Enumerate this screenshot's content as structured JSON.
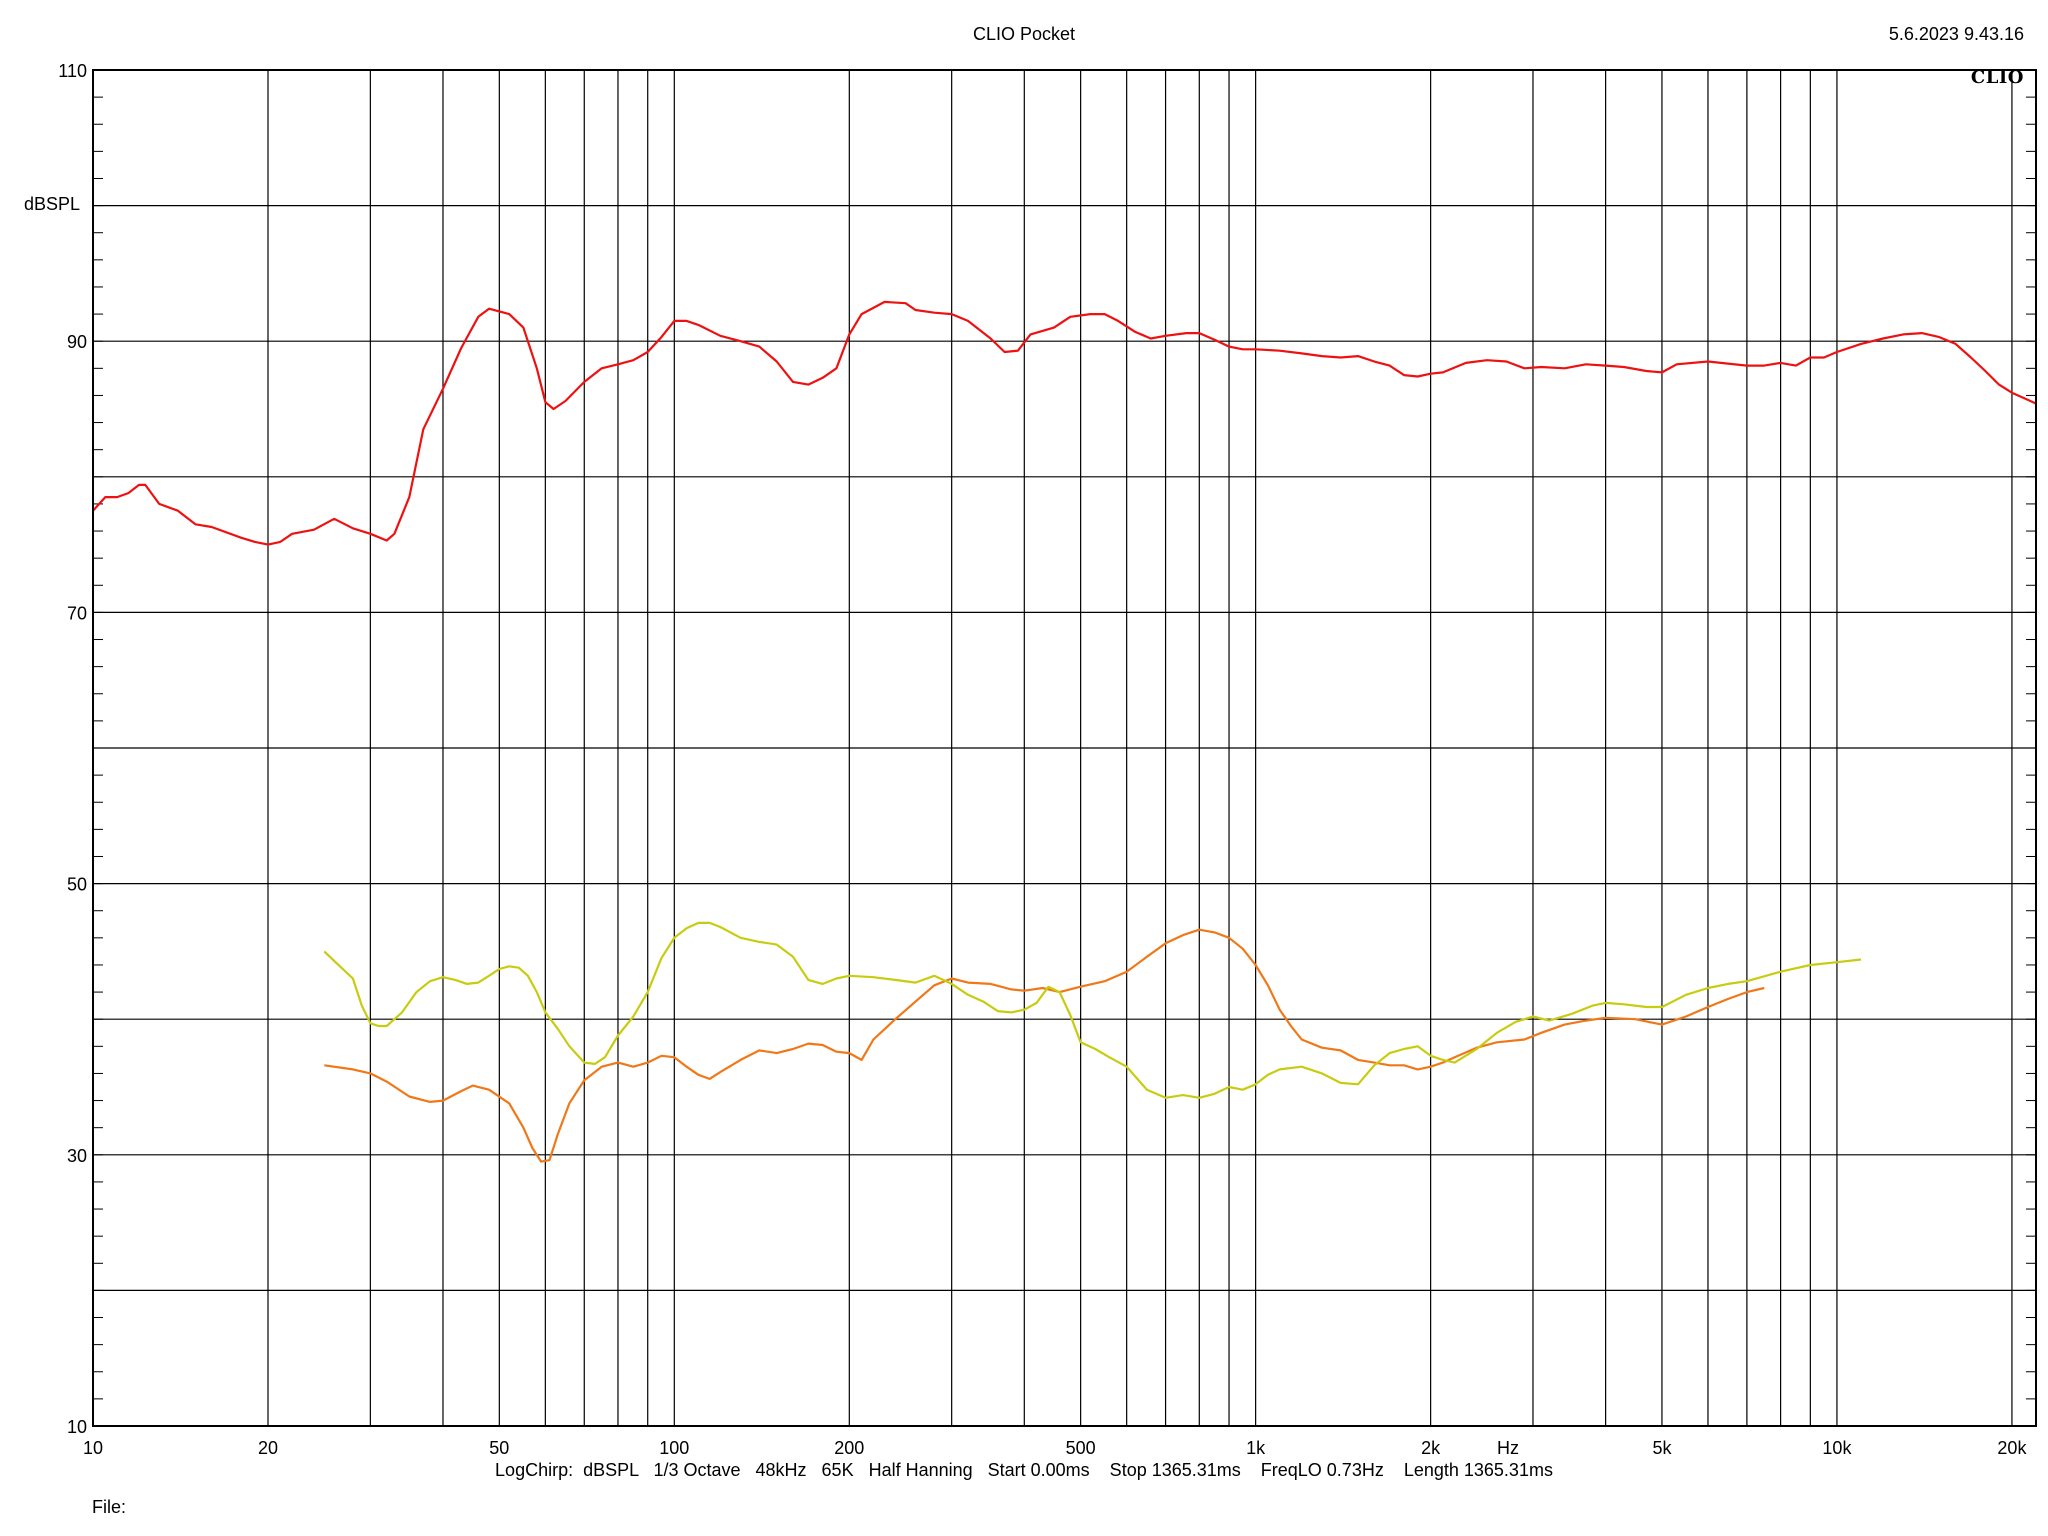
{
  "header": {
    "title": "CLIO Pocket",
    "timestamp": "5.6.2023 9.43.16",
    "logo": "CLIO"
  },
  "footer": {
    "params": "LogChirp:  dBSPL   1/3 Octave   48kHz   65K   Half Hanning   Start 0.00ms    Stop 1365.31ms    FreqLO 0.73Hz    Length 1365.31ms",
    "file_label": "File:"
  },
  "colors": {
    "red": "#ee1111",
    "orange": "#f07818",
    "yellow": "#c8cc10",
    "grid": "#000000"
  },
  "chart_data": {
    "type": "line",
    "title": "CLIO Pocket",
    "xlabel": "Hz",
    "ylabel": "dBSPL",
    "xscale": "log",
    "xlim": [
      10,
      22000
    ],
    "ylim": [
      10,
      110
    ],
    "grid": true,
    "xticks": [
      10,
      20,
      50,
      100,
      200,
      500,
      1000,
      2000,
      5000,
      10000,
      20000
    ],
    "xtick_labels": [
      "10",
      "20",
      "50",
      "100",
      "200",
      "500",
      "1k",
      "2k",
      "5k",
      "10k",
      "20k"
    ],
    "yticks": [
      10,
      30,
      50,
      70,
      90,
      110
    ],
    "ytick_labels": [
      "10",
      "30",
      "50",
      "70",
      "90",
      "110"
    ],
    "series": [
      {
        "color": "#ee1111",
        "points": [
          [
            10,
            77.5
          ],
          [
            10.5,
            78.5
          ],
          [
            11,
            78.5
          ],
          [
            11.5,
            78.8
          ],
          [
            12,
            79.4
          ],
          [
            12.3,
            79.4
          ],
          [
            13,
            78.0
          ],
          [
            14,
            77.5
          ],
          [
            15,
            76.5
          ],
          [
            16,
            76.3
          ],
          [
            18,
            75.5
          ],
          [
            19,
            75.2
          ],
          [
            20,
            75.0
          ],
          [
            21,
            75.2
          ],
          [
            22,
            75.8
          ],
          [
            24,
            76.1
          ],
          [
            26,
            76.9
          ],
          [
            28,
            76.2
          ],
          [
            30,
            75.8
          ],
          [
            32,
            75.3
          ],
          [
            33,
            75.8
          ],
          [
            35,
            78.5
          ],
          [
            37,
            83.5
          ],
          [
            40,
            86.5
          ],
          [
            43,
            89.5
          ],
          [
            46,
            91.8
          ],
          [
            48,
            92.4
          ],
          [
            52,
            92.0
          ],
          [
            55,
            91.0
          ],
          [
            58,
            88.0
          ],
          [
            60,
            85.5
          ],
          [
            62,
            85.0
          ],
          [
            65,
            85.6
          ],
          [
            70,
            87.0
          ],
          [
            75,
            88.0
          ],
          [
            80,
            88.3
          ],
          [
            85,
            88.6
          ],
          [
            90,
            89.2
          ],
          [
            95,
            90.3
          ],
          [
            100,
            91.5
          ],
          [
            105,
            91.5
          ],
          [
            110,
            91.2
          ],
          [
            120,
            90.4
          ],
          [
            130,
            90.0
          ],
          [
            140,
            89.6
          ],
          [
            150,
            88.5
          ],
          [
            160,
            87.0
          ],
          [
            170,
            86.8
          ],
          [
            180,
            87.3
          ],
          [
            190,
            88.0
          ],
          [
            200,
            90.5
          ],
          [
            210,
            92.0
          ],
          [
            230,
            92.9
          ],
          [
            250,
            92.8
          ],
          [
            260,
            92.3
          ],
          [
            280,
            92.1
          ],
          [
            300,
            92.0
          ],
          [
            320,
            91.5
          ],
          [
            350,
            90.2
          ],
          [
            370,
            89.2
          ],
          [
            390,
            89.3
          ],
          [
            410,
            90.5
          ],
          [
            450,
            91.0
          ],
          [
            480,
            91.8
          ],
          [
            520,
            92.0
          ],
          [
            550,
            92.0
          ],
          [
            580,
            91.5
          ],
          [
            620,
            90.7
          ],
          [
            660,
            90.2
          ],
          [
            700,
            90.4
          ],
          [
            760,
            90.6
          ],
          [
            800,
            90.6
          ],
          [
            850,
            90.1
          ],
          [
            900,
            89.6
          ],
          [
            950,
            89.4
          ],
          [
            1000,
            89.4
          ],
          [
            1100,
            89.3
          ],
          [
            1200,
            89.1
          ],
          [
            1300,
            88.9
          ],
          [
            1400,
            88.8
          ],
          [
            1500,
            88.9
          ],
          [
            1600,
            88.5
          ],
          [
            1700,
            88.2
          ],
          [
            1800,
            87.5
          ],
          [
            1900,
            87.4
          ],
          [
            2000,
            87.6
          ],
          [
            2100,
            87.7
          ],
          [
            2300,
            88.4
          ],
          [
            2500,
            88.6
          ],
          [
            2700,
            88.5
          ],
          [
            2900,
            88.0
          ],
          [
            3100,
            88.1
          ],
          [
            3400,
            88.0
          ],
          [
            3700,
            88.3
          ],
          [
            4000,
            88.2
          ],
          [
            4300,
            88.1
          ],
          [
            4700,
            87.8
          ],
          [
            5000,
            87.7
          ],
          [
            5300,
            88.3
          ],
          [
            6000,
            88.5
          ],
          [
            7000,
            88.2
          ],
          [
            7500,
            88.2
          ],
          [
            8000,
            88.4
          ],
          [
            8500,
            88.2
          ],
          [
            9000,
            88.8
          ],
          [
            9500,
            88.8
          ],
          [
            10000,
            89.2
          ],
          [
            11000,
            89.8
          ],
          [
            12000,
            90.2
          ],
          [
            13000,
            90.5
          ],
          [
            14000,
            90.6
          ],
          [
            15000,
            90.3
          ],
          [
            16000,
            89.8
          ],
          [
            17000,
            88.8
          ],
          [
            18000,
            87.8
          ],
          [
            19000,
            86.8
          ],
          [
            20000,
            86.2
          ],
          [
            21000,
            85.8
          ],
          [
            22000,
            85.4
          ]
        ]
      },
      {
        "color": "#f07818",
        "points": [
          [
            25,
            36.6
          ],
          [
            28,
            36.3
          ],
          [
            30,
            36.0
          ],
          [
            32,
            35.4
          ],
          [
            35,
            34.3
          ],
          [
            38,
            33.9
          ],
          [
            40,
            34.0
          ],
          [
            43,
            34.7
          ],
          [
            45,
            35.1
          ],
          [
            48,
            34.8
          ],
          [
            52,
            33.8
          ],
          [
            55,
            32.0
          ],
          [
            57,
            30.5
          ],
          [
            59,
            29.5
          ],
          [
            61,
            29.6
          ],
          [
            63,
            31.5
          ],
          [
            66,
            33.8
          ],
          [
            70,
            35.5
          ],
          [
            75,
            36.5
          ],
          [
            80,
            36.8
          ],
          [
            85,
            36.5
          ],
          [
            90,
            36.8
          ],
          [
            95,
            37.3
          ],
          [
            100,
            37.2
          ],
          [
            105,
            36.5
          ],
          [
            110,
            35.9
          ],
          [
            115,
            35.6
          ],
          [
            120,
            36.1
          ],
          [
            130,
            37.0
          ],
          [
            140,
            37.7
          ],
          [
            150,
            37.5
          ],
          [
            160,
            37.8
          ],
          [
            170,
            38.2
          ],
          [
            180,
            38.1
          ],
          [
            190,
            37.6
          ],
          [
            200,
            37.5
          ],
          [
            210,
            37.0
          ],
          [
            220,
            38.5
          ],
          [
            240,
            40.0
          ],
          [
            260,
            41.3
          ],
          [
            280,
            42.5
          ],
          [
            300,
            43.0
          ],
          [
            320,
            42.7
          ],
          [
            350,
            42.6
          ],
          [
            380,
            42.2
          ],
          [
            400,
            42.1
          ],
          [
            430,
            42.3
          ],
          [
            460,
            42.0
          ],
          [
            500,
            42.4
          ],
          [
            550,
            42.8
          ],
          [
            600,
            43.5
          ],
          [
            650,
            44.6
          ],
          [
            700,
            45.6
          ],
          [
            750,
            46.2
          ],
          [
            800,
            46.6
          ],
          [
            850,
            46.4
          ],
          [
            900,
            46.0
          ],
          [
            950,
            45.2
          ],
          [
            1000,
            44.0
          ],
          [
            1050,
            42.5
          ],
          [
            1100,
            40.7
          ],
          [
            1150,
            39.5
          ],
          [
            1200,
            38.5
          ],
          [
            1300,
            37.9
          ],
          [
            1400,
            37.7
          ],
          [
            1500,
            37.0
          ],
          [
            1600,
            36.8
          ],
          [
            1700,
            36.6
          ],
          [
            1800,
            36.6
          ],
          [
            1900,
            36.3
          ],
          [
            2000,
            36.5
          ],
          [
            2100,
            36.8
          ],
          [
            2200,
            37.2
          ],
          [
            2400,
            37.9
          ],
          [
            2600,
            38.3
          ],
          [
            2900,
            38.5
          ],
          [
            3100,
            39.0
          ],
          [
            3400,
            39.6
          ],
          [
            3700,
            39.9
          ],
          [
            4000,
            40.1
          ],
          [
            4500,
            40.0
          ],
          [
            5000,
            39.6
          ],
          [
            5500,
            40.2
          ],
          [
            6000,
            40.9
          ],
          [
            6500,
            41.5
          ],
          [
            7000,
            42.0
          ],
          [
            7500,
            42.3
          ]
        ]
      },
      {
        "color": "#c8cc10",
        "points": [
          [
            25,
            45.0
          ],
          [
            26,
            44.3
          ],
          [
            28,
            43.0
          ],
          [
            29,
            41.0
          ],
          [
            30,
            39.7
          ],
          [
            31,
            39.5
          ],
          [
            32,
            39.5
          ],
          [
            34,
            40.5
          ],
          [
            36,
            42.0
          ],
          [
            38,
            42.8
          ],
          [
            40,
            43.1
          ],
          [
            42,
            42.9
          ],
          [
            44,
            42.6
          ],
          [
            46,
            42.7
          ],
          [
            48,
            43.2
          ],
          [
            50,
            43.7
          ],
          [
            52,
            43.9
          ],
          [
            54,
            43.8
          ],
          [
            56,
            43.2
          ],
          [
            58,
            42.0
          ],
          [
            60,
            40.5
          ],
          [
            63,
            39.3
          ],
          [
            66,
            38.0
          ],
          [
            70,
            36.8
          ],
          [
            73,
            36.7
          ],
          [
            76,
            37.2
          ],
          [
            80,
            38.8
          ],
          [
            85,
            40.2
          ],
          [
            90,
            42.0
          ],
          [
            95,
            44.5
          ],
          [
            100,
            46.0
          ],
          [
            105,
            46.7
          ],
          [
            110,
            47.1
          ],
          [
            115,
            47.1
          ],
          [
            120,
            46.8
          ],
          [
            130,
            46.0
          ],
          [
            140,
            45.7
          ],
          [
            150,
            45.5
          ],
          [
            160,
            44.6
          ],
          [
            170,
            42.9
          ],
          [
            180,
            42.6
          ],
          [
            190,
            43.0
          ],
          [
            200,
            43.2
          ],
          [
            220,
            43.1
          ],
          [
            240,
            42.9
          ],
          [
            260,
            42.7
          ],
          [
            280,
            43.2
          ],
          [
            300,
            42.6
          ],
          [
            320,
            41.8
          ],
          [
            340,
            41.3
          ],
          [
            360,
            40.6
          ],
          [
            380,
            40.5
          ],
          [
            400,
            40.7
          ],
          [
            420,
            41.2
          ],
          [
            440,
            42.4
          ],
          [
            460,
            42.0
          ],
          [
            480,
            40.3
          ],
          [
            500,
            38.3
          ],
          [
            530,
            37.8
          ],
          [
            560,
            37.2
          ],
          [
            600,
            36.5
          ],
          [
            650,
            34.8
          ],
          [
            700,
            34.2
          ],
          [
            750,
            34.4
          ],
          [
            800,
            34.2
          ],
          [
            850,
            34.5
          ],
          [
            900,
            35.0
          ],
          [
            950,
            34.8
          ],
          [
            1000,
            35.2
          ],
          [
            1050,
            35.9
          ],
          [
            1100,
            36.3
          ],
          [
            1200,
            36.5
          ],
          [
            1300,
            36.0
          ],
          [
            1400,
            35.3
          ],
          [
            1500,
            35.2
          ],
          [
            1600,
            36.6
          ],
          [
            1700,
            37.5
          ],
          [
            1800,
            37.8
          ],
          [
            1900,
            38.0
          ],
          [
            2000,
            37.3
          ],
          [
            2100,
            37.0
          ],
          [
            2200,
            36.8
          ],
          [
            2400,
            37.8
          ],
          [
            2600,
            39.0
          ],
          [
            2800,
            39.8
          ],
          [
            3000,
            40.2
          ],
          [
            3200,
            39.9
          ],
          [
            3500,
            40.4
          ],
          [
            3800,
            41.0
          ],
          [
            4000,
            41.2
          ],
          [
            4300,
            41.1
          ],
          [
            4700,
            40.9
          ],
          [
            5000,
            40.9
          ],
          [
            5500,
            41.8
          ],
          [
            6000,
            42.3
          ],
          [
            6500,
            42.6
          ],
          [
            7000,
            42.8
          ],
          [
            8000,
            43.5
          ],
          [
            9000,
            44.0
          ],
          [
            10000,
            44.2
          ],
          [
            11000,
            44.4
          ]
        ]
      }
    ]
  }
}
